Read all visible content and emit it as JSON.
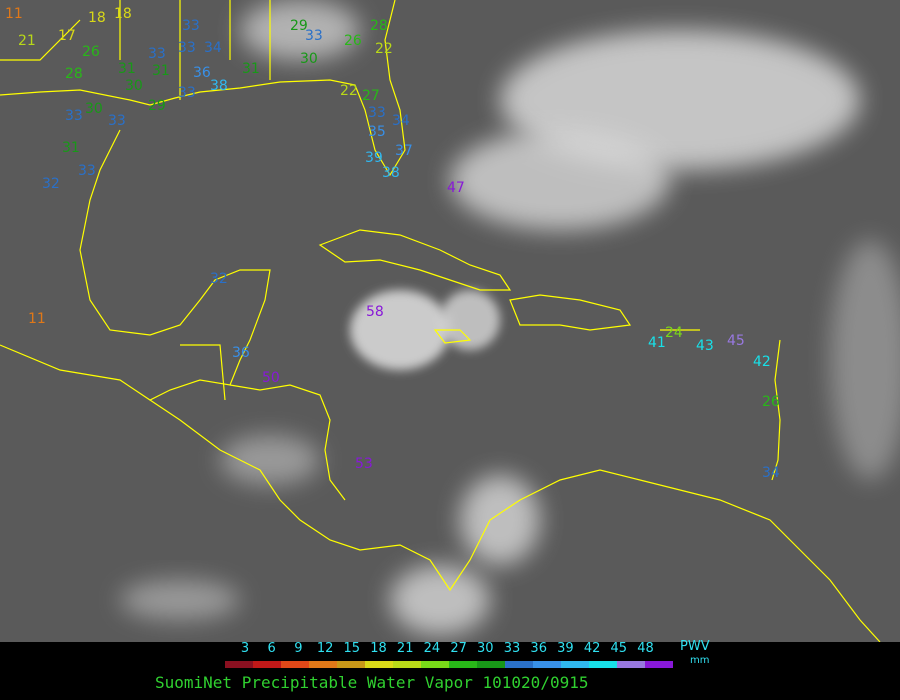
{
  "title": "SuomiNet Precipitable Water Vapor 101020/0915",
  "legend": {
    "unit_top": "PWV",
    "unit_bottom": "mm",
    "ticks": [
      3,
      6,
      9,
      12,
      15,
      18,
      21,
      24,
      27,
      30,
      33,
      36,
      39,
      42,
      45,
      48
    ],
    "colors": [
      "#8a1020",
      "#c01818",
      "#e04818",
      "#e07818",
      "#c89818",
      "#d8d818",
      "#b8d818",
      "#78d818",
      "#28b818",
      "#189818",
      "#2a70c8",
      "#3890e8",
      "#30b8f0",
      "#18e0e8",
      "#9878e0",
      "#8818d8"
    ]
  },
  "stations": [
    11,
    21,
    17,
    18,
    18,
    26,
    28,
    31,
    33,
    30,
    31,
    33,
    33,
    34,
    36,
    38,
    31,
    33,
    29,
    30,
    33,
    33,
    31,
    33,
    32,
    29,
    33,
    30,
    28,
    26,
    22,
    22,
    27,
    33,
    34,
    35,
    37,
    39,
    38,
    47,
    11,
    32,
    58,
    36,
    50,
    53,
    41,
    24,
    43,
    45,
    42,
    26,
    34
  ]
}
